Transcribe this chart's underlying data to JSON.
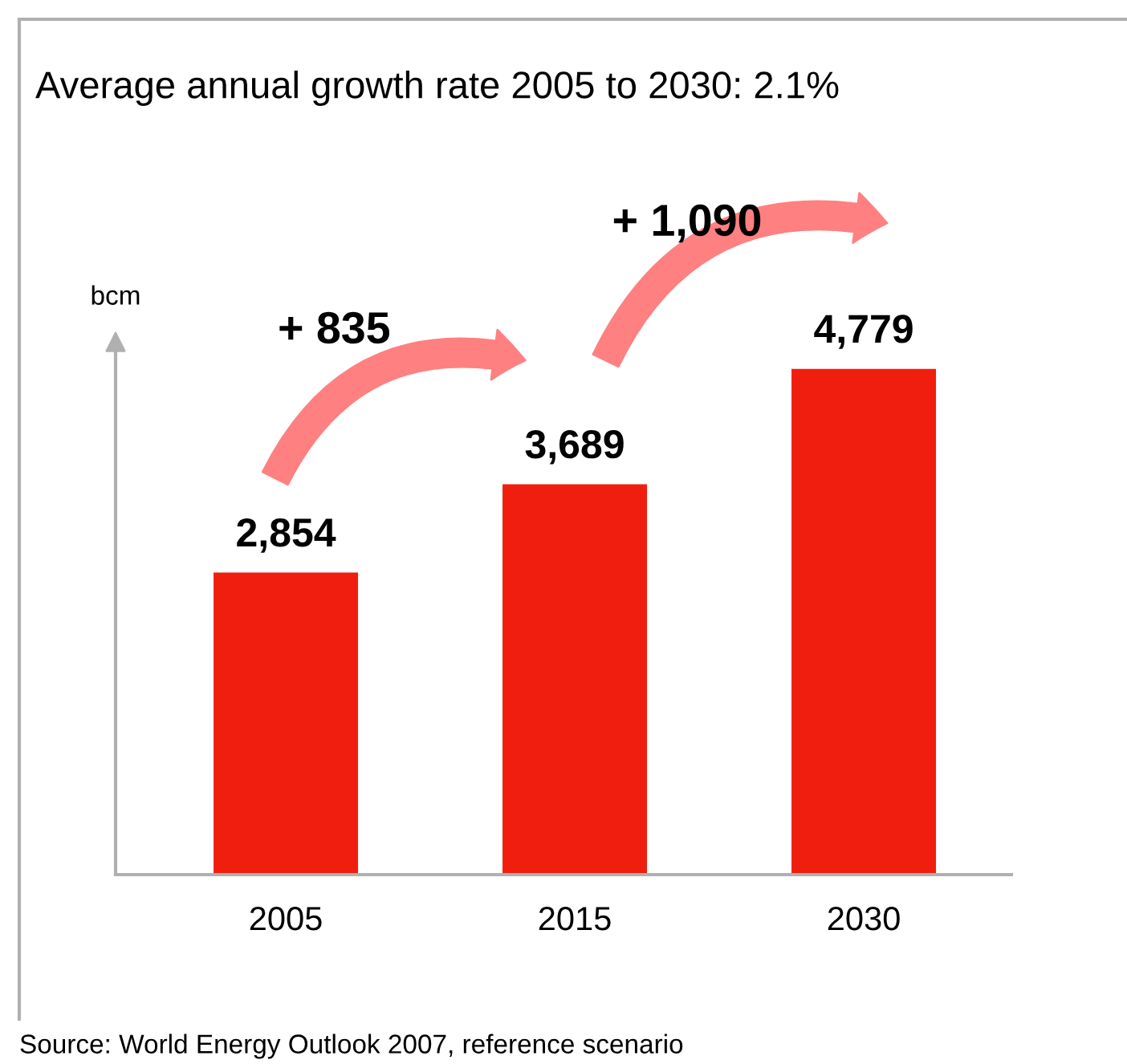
{
  "chart_data": {
    "type": "bar",
    "title": "Average annual growth rate 2005 to 2030: 2.1%",
    "ylabel": "bcm",
    "categories": [
      "2005",
      "2015",
      "2030"
    ],
    "values": [
      2854,
      3689,
      4779
    ],
    "color": "#f01e0e",
    "value_labels": [
      "2,854",
      "3,689",
      "4,779"
    ],
    "grid": false,
    "annotations": [
      "+ 835",
      "+ 1,090",
      "Source: World Energy Outlook 2007, reference scenario"
    ]
  }
}
